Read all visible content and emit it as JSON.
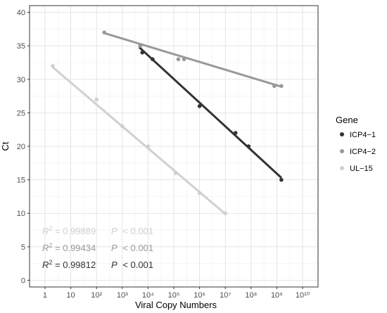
{
  "chart_data": {
    "type": "scatter",
    "title": "",
    "xlabel": "Viral Copy Numbers",
    "ylabel": "Ct",
    "x_scale": "log10",
    "xlim_log10": [
      -0.6,
      10.6
    ],
    "ylim": [
      -1,
      41
    ],
    "x_ticks": [
      {
        "exp": 0,
        "label": "1"
      },
      {
        "exp": 1,
        "label": "10"
      },
      {
        "exp": 2,
        "label": "10²"
      },
      {
        "exp": 3,
        "label": "10³"
      },
      {
        "exp": 4,
        "label": "10⁴"
      },
      {
        "exp": 5,
        "label": "10⁵"
      },
      {
        "exp": 6,
        "label": "10⁶"
      },
      {
        "exp": 7,
        "label": "10⁷"
      },
      {
        "exp": 8,
        "label": "10⁸"
      },
      {
        "exp": 9,
        "label": "10⁹"
      },
      {
        "exp": 10,
        "label": "10¹⁰"
      }
    ],
    "y_ticks": [
      0,
      5,
      10,
      15,
      20,
      25,
      30,
      35,
      40
    ],
    "grid": true,
    "legend": {
      "title": "Gene",
      "position": "right"
    },
    "series": [
      {
        "name": "ICP4−1",
        "color": "#333333",
        "points": [
          {
            "x": 5000,
            "y": 35
          },
          {
            "x": 6000,
            "y": 34
          },
          {
            "x": 15000,
            "y": 33
          },
          {
            "x": 1000000,
            "y": 26
          },
          {
            "x": 25000000,
            "y": 22
          },
          {
            "x": 80000000,
            "y": 20
          },
          {
            "x": 1500000000,
            "y": 15
          }
        ],
        "fit": {
          "x_start": 4500,
          "y_start": 34.8,
          "x_end": 1500000000,
          "y_end": 15.3
        },
        "r2": "0.99812",
        "p": "< 0.001"
      },
      {
        "name": "ICP4−2",
        "color": "#999999",
        "points": [
          {
            "x": 200,
            "y": 37
          },
          {
            "x": 5000,
            "y": 35
          },
          {
            "x": 150000,
            "y": 33
          },
          {
            "x": 250000,
            "y": 33
          },
          {
            "x": 800000000,
            "y": 29
          },
          {
            "x": 1500000000,
            "y": 29
          }
        ],
        "fit": {
          "x_start": 200,
          "y_start": 36.9,
          "x_end": 1500000000,
          "y_end": 28.9
        },
        "r2": "0.99434",
        "p": "< 0.001"
      },
      {
        "name": "UL−15",
        "color": "#d0d0d0",
        "points": [
          {
            "x": 2,
            "y": 32
          },
          {
            "x": 100,
            "y": 27
          },
          {
            "x": 1000,
            "y": 23
          },
          {
            "x": 10000,
            "y": 20
          },
          {
            "x": 120000,
            "y": 16
          },
          {
            "x": 1000000,
            "y": 13
          },
          {
            "x": 10000000,
            "y": 10
          }
        ],
        "fit": {
          "x_start": 2,
          "y_start": 31.8,
          "x_end": 10000000,
          "y_end": 9.9
        },
        "r2": "0.99889",
        "p": "< 0.001"
      }
    ],
    "annotations": [
      {
        "series": "UL−15",
        "r_label": "R",
        "sup": "2",
        "eq": " = 0.99889",
        "p_label": "P",
        "p_value": " < 0.001"
      },
      {
        "series": "ICP4−2",
        "r_label": "R",
        "sup": "2",
        "eq": " = 0.99434",
        "p_label": "P",
        "p_value": " < 0.001"
      },
      {
        "series": "ICP4−1",
        "r_label": "R",
        "sup": "2",
        "eq": " = 0.99812",
        "p_label": "P",
        "p_value": " < 0.001"
      }
    ]
  }
}
